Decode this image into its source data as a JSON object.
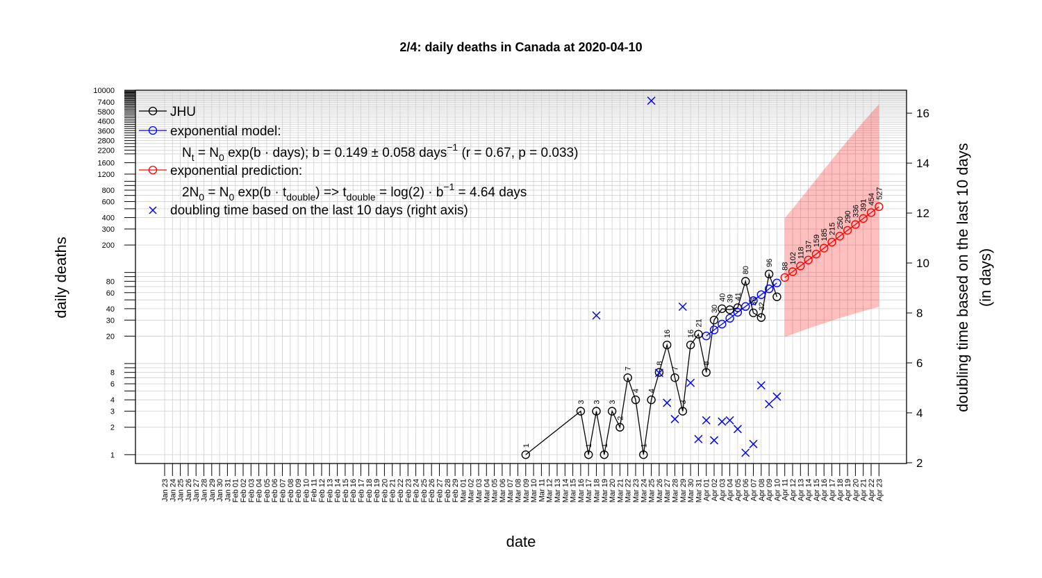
{
  "chart_data": {
    "type": "line",
    "title": "2/4: daily deaths in Canada at 2020-04-10",
    "xlabel": "date",
    "ylabel": "daily deaths",
    "y2label_line1": "doubling time based on the last 10 days",
    "y2label_line2": "(in days)",
    "y_scale": "log",
    "ylim": [
      0.8,
      10000
    ],
    "y2lim": [
      1.97,
      16.92
    ],
    "grid": true,
    "legend_position": "top-left",
    "y_ticks": [
      1,
      2,
      3,
      4,
      6,
      8,
      20,
      30,
      40,
      60,
      80,
      200,
      300,
      400,
      600,
      800,
      1200,
      1600,
      2200,
      2800,
      3600,
      4600,
      5800,
      7400,
      10000
    ],
    "y_ticks_unlabeled": [
      10,
      100,
      1000
    ],
    "y_ticks_dense": [
      5,
      7,
      9,
      50,
      70,
      90,
      500,
      700,
      900,
      2000,
      2400,
      2600,
      3000,
      3200,
      3400,
      3800,
      4000,
      4200,
      4400,
      4800,
      5000,
      5200,
      5400,
      5600,
      6000,
      6200,
      6400,
      6600,
      6800,
      7000,
      7200,
      7600,
      7800,
      8000,
      8200,
      8400,
      8600,
      8800,
      9000,
      9200,
      9400,
      9600,
      9800
    ],
    "y2_ticks": [
      2,
      4,
      6,
      8,
      10,
      12,
      14,
      16
    ],
    "x_tick_labels": [
      "Jan 23",
      "Jan 24",
      "Jan 25",
      "Jan 26",
      "Jan 27",
      "Jan 28",
      "Jan 29",
      "Jan 30",
      "Jan 31",
      "Feb 01",
      "Feb 02",
      "Feb 03",
      "Feb 04",
      "Feb 05",
      "Feb 06",
      "Feb 07",
      "Feb 08",
      "Feb 09",
      "Feb 10",
      "Feb 11",
      "Feb 12",
      "Feb 13",
      "Feb 14",
      "Feb 15",
      "Feb 16",
      "Feb 17",
      "Feb 18",
      "Feb 19",
      "Feb 20",
      "Feb 21",
      "Feb 22",
      "Feb 23",
      "Feb 24",
      "Feb 25",
      "Feb 26",
      "Feb 27",
      "Feb 28",
      "Feb 29",
      "Mar 01",
      "Mar 02",
      "Mar 03",
      "Mar 04",
      "Mar 05",
      "Mar 06",
      "Mar 07",
      "Mar 08",
      "Mar 09",
      "Mar 10",
      "Mar 11",
      "Mar 12",
      "Mar 13",
      "Mar 14",
      "Mar 15",
      "Mar 16",
      "Mar 17",
      "Mar 18",
      "Mar 19",
      "Mar 20",
      "Mar 21",
      "Mar 22",
      "Mar 23",
      "Mar 24",
      "Mar 25",
      "Mar 26",
      "Mar 27",
      "Mar 28",
      "Mar 29",
      "Mar 30",
      "Mar 31",
      "Apr 01",
      "Apr 02",
      "Apr 03",
      "Apr 04",
      "Apr 05",
      "Apr 06",
      "Apr 07",
      "Apr 08",
      "Apr 09",
      "Apr 10",
      "Apr 11",
      "Apr 12",
      "Apr 13",
      "Apr 14",
      "Apr 15",
      "Apr 16",
      "Apr 17",
      "Apr 18",
      "Apr 19",
      "Apr 20",
      "Apr 21",
      "Apr 22",
      "Apr 23"
    ],
    "series": [
      {
        "name": "JHU",
        "color": "#000000",
        "x": [
          "Mar 09",
          "Mar 16",
          "Mar 17",
          "Mar 18",
          "Mar 19",
          "Mar 20",
          "Mar 21",
          "Mar 22",
          "Mar 23",
          "Mar 24",
          "Mar 25",
          "Mar 26",
          "Mar 27",
          "Mar 28",
          "Mar 29",
          "Mar 30",
          "Mar 31",
          "Apr 01",
          "Apr 02",
          "Apr 03",
          "Apr 04",
          "Apr 05",
          "Apr 06",
          "Apr 07",
          "Apr 08",
          "Apr 09",
          "Apr 10"
        ],
        "values": [
          1,
          3,
          1,
          3,
          1,
          3,
          2,
          7,
          4,
          1,
          4,
          8,
          16,
          7,
          3,
          16,
          21,
          8,
          30,
          40,
          39,
          41,
          80,
          36,
          32,
          96,
          54
        ],
        "data_labels": [
          "1",
          "3",
          "1",
          "3",
          "1",
          "3",
          "2",
          "7",
          "4",
          "1",
          "4",
          "8",
          "16",
          "7",
          "3",
          "16",
          "21",
          "8",
          "30",
          "40",
          "39",
          "41",
          "80",
          "36",
          "32",
          "96",
          ""
        ]
      },
      {
        "name": "exponential model:",
        "color": "#0000ff",
        "x": [
          "Apr 01",
          "Apr 02",
          "Apr 03",
          "Apr 04",
          "Apr 05",
          "Apr 06",
          "Apr 07",
          "Apr 08",
          "Apr 09",
          "Apr 10"
        ],
        "values": [
          20.1,
          23.4,
          27.1,
          31.4,
          36.5,
          42.3,
          49.1,
          57.0,
          66.1,
          76.7
        ]
      },
      {
        "name": "exponential prediction:",
        "color": "#ff0000",
        "x": [
          "Apr 11",
          "Apr 12",
          "Apr 13",
          "Apr 14",
          "Apr 15",
          "Apr 16",
          "Apr 17",
          "Apr 18",
          "Apr 19",
          "Apr 20",
          "Apr 21",
          "Apr 22",
          "Apr 23"
        ],
        "values": [
          88,
          102,
          118,
          137,
          159,
          185,
          215,
          250,
          290,
          336,
          391,
          454,
          527
        ],
        "data_labels": [
          "88",
          "102",
          "118",
          "137",
          "159",
          "185",
          "215",
          "250",
          "290",
          "336",
          "391",
          "454",
          "527"
        ],
        "band_lower": [
          19.5,
          21.0,
          22.6,
          24.2,
          25.9,
          27.7,
          29.6,
          31.5,
          33.5,
          35.5,
          37.6,
          39.8,
          42.0
        ],
        "band_upper": [
          395,
          500,
          640,
          820,
          1050,
          1350,
          1720,
          2200,
          2800,
          3550,
          4480,
          5620,
          7000
        ]
      },
      {
        "name": "doubling time based on the last  10  days (right axis)",
        "color": "#0000ff",
        "axis": "right",
        "x": [
          "Mar 18",
          "Mar 25",
          "Mar 26",
          "Mar 27",
          "Mar 28",
          "Mar 29",
          "Mar 30",
          "Mar 31",
          "Apr 01",
          "Apr 02",
          "Apr 03",
          "Apr 04",
          "Apr 05",
          "Apr 06",
          "Apr 07",
          "Apr 08",
          "Apr 09",
          "Apr 10"
        ],
        "values": [
          7.9,
          16.5,
          5.6,
          4.4,
          3.75,
          8.25,
          5.2,
          2.95,
          3.7,
          2.9,
          3.65,
          3.7,
          3.35,
          2.4,
          2.75,
          5.1,
          4.35,
          4.65
        ]
      }
    ],
    "legend": {
      "items": [
        {
          "label": "JHU",
          "symbol": "line-circle",
          "color": "#000000"
        },
        {
          "label": "exponential model:",
          "symbol": "line-circle",
          "color": "#0000ff"
        },
        {
          "label": "exponential prediction:",
          "symbol": "line-circle",
          "color": "#ff0000"
        },
        {
          "label": "doubling time based on the last  10  days (right axis)",
          "symbol": "cross",
          "color": "#0000ff"
        }
      ],
      "model_formula": {
        "p1": "N",
        "s1": "t",
        "p2": " = N",
        "s2": "0",
        "p3": " exp(b · days); b = 0.149 ± 0.058 days",
        "sup": "−1",
        "p4": " (r = 0.67, p = 0.033)"
      },
      "doubling_formula": {
        "p1": "2N",
        "s1": "0",
        "p2": " = N",
        "s2": "0",
        "p3": " exp(b · t",
        "s3": "double",
        "p4": ") => t",
        "s4": "double",
        "p5": " = log(2) · b",
        "sup": "−1",
        "p6": " = 4.64 days"
      }
    }
  }
}
